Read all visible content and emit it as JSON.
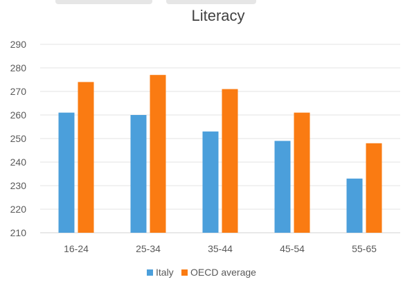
{
  "chart_data": {
    "type": "bar",
    "title": "Literacy",
    "xlabel": "",
    "ylabel": "",
    "categories": [
      "16-24",
      "25-34",
      "35-44",
      "45-54",
      "55-65"
    ],
    "series": [
      {
        "name": "Italy",
        "color": "#4b9fdb",
        "values": [
          261,
          260,
          253,
          249,
          233
        ]
      },
      {
        "name": "OECD average",
        "color": "#fa7b12",
        "values": [
          274,
          277,
          271,
          261,
          248
        ]
      }
    ],
    "ylim": [
      210,
      290
    ],
    "yticks": [
      "210",
      "220",
      "230",
      "240",
      "250",
      "260",
      "270",
      "280",
      "290"
    ],
    "grid": true,
    "legend_position": "bottom-center"
  }
}
